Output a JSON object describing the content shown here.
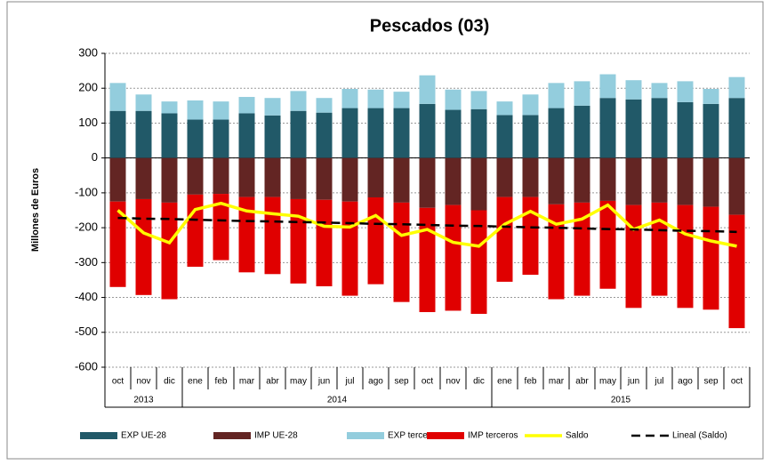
{
  "chart_data": {
    "type": "stacked-bar-line",
    "title": "Pescados (03)",
    "y_label": "Millones de Euros",
    "categories": [
      "oct",
      "nov",
      "dic",
      "ene",
      "feb",
      "mar",
      "abr",
      "may",
      "jun",
      "jul",
      "ago",
      "sep",
      "oct",
      "nov",
      "dic",
      "ene",
      "feb",
      "mar",
      "abr",
      "may",
      "jun",
      "jul",
      "ago",
      "sep",
      "oct"
    ],
    "year_categories": [
      "2013",
      "2013",
      "2013",
      "2014",
      "2014",
      "2014",
      "2014",
      "2014",
      "2014",
      "2014",
      "2014",
      "2014",
      "2014",
      "2014",
      "2014",
      "2015",
      "2015",
      "2015",
      "2015",
      "2015",
      "2015",
      "2015",
      "2015",
      "2015",
      "2015"
    ],
    "ylim": [
      -600,
      300
    ],
    "yticks": [
      -600,
      -500,
      -400,
      -300,
      -200,
      -100,
      0,
      100,
      200,
      300
    ],
    "grid": true,
    "legend": "bottom",
    "series": [
      {
        "name": "EXP UE-28",
        "kind": "bar",
        "stack": "pos",
        "color": "#215968",
        "values": [
          135,
          135,
          128,
          110,
          110,
          128,
          122,
          135,
          130,
          143,
          143,
          143,
          155,
          138,
          140,
          123,
          123,
          143,
          150,
          172,
          168,
          172,
          160,
          155,
          172
        ]
      },
      {
        "name": "IMP UE-28",
        "kind": "bar",
        "stack": "neg",
        "color": "#632523",
        "values": [
          -125,
          -118,
          -128,
          -105,
          -103,
          -112,
          -112,
          -118,
          -120,
          -125,
          -113,
          -128,
          -143,
          -135,
          -150,
          -112,
          -112,
          -133,
          -128,
          -123,
          -135,
          -128,
          -135,
          -140,
          -163
        ]
      },
      {
        "name": "EXP terceros",
        "kind": "bar",
        "stack": "pos",
        "color": "#93cddd",
        "values": [
          80,
          47,
          34,
          55,
          52,
          47,
          50,
          57,
          42,
          55,
          53,
          47,
          82,
          58,
          52,
          39,
          59,
          72,
          70,
          68,
          55,
          43,
          60,
          43,
          60
        ]
      },
      {
        "name": "IMP terceros",
        "kind": "bar",
        "stack": "neg",
        "color": "#e00000",
        "values": [
          -245,
          -275,
          -277,
          -207,
          -190,
          -216,
          -221,
          -242,
          -248,
          -270,
          -249,
          -285,
          -299,
          -303,
          -297,
          -243,
          -223,
          -272,
          -267,
          -252,
          -295,
          -267,
          -295,
          -295,
          -325
        ]
      },
      {
        "name": "Saldo",
        "kind": "line",
        "color": "#ffff00",
        "values": [
          -150,
          -215,
          -243,
          -148,
          -130,
          -152,
          -160,
          -167,
          -196,
          -198,
          -165,
          -222,
          -205,
          -242,
          -253,
          -190,
          -153,
          -190,
          -175,
          -135,
          -205,
          -178,
          -218,
          -238,
          -253
        ]
      },
      {
        "name": "Lineal (Saldo)",
        "kind": "dashed",
        "color": "#000000",
        "values": [
          -172,
          -174,
          -175,
          -177,
          -179,
          -181,
          -182,
          -184,
          -185,
          -187,
          -189,
          -190,
          -192,
          -194,
          -195,
          -197,
          -199,
          -200,
          -202,
          -204,
          -205,
          -207,
          -209,
          -210,
          -212
        ]
      }
    ]
  }
}
